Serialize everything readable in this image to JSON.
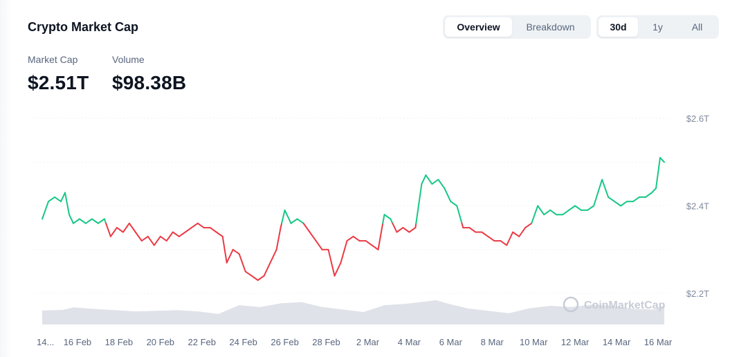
{
  "header": {
    "title": "Crypto Market Cap",
    "view_tabs": [
      {
        "label": "Overview",
        "active": true
      },
      {
        "label": "Breakdown",
        "active": false
      }
    ],
    "range_tabs": [
      {
        "label": "30d",
        "active": true
      },
      {
        "label": "1y",
        "active": false
      },
      {
        "label": "All",
        "active": false
      }
    ]
  },
  "stats": {
    "market_cap_label": "Market Cap",
    "market_cap_value": "$2.51T",
    "volume_label": "Volume",
    "volume_value": "$98.38B"
  },
  "watermark": "CoinMarketCap",
  "colors": {
    "up": "#16c784",
    "down": "#ea3943",
    "volume": "#dfe2e8",
    "grid": "#eff2f5"
  },
  "chart_data": {
    "type": "line",
    "title": "",
    "xlabel": "",
    "ylabel": "",
    "y_unit": "T",
    "ylim": [
      2.14,
      2.61
    ],
    "y_ticks": [
      {
        "value": 2.6,
        "label": "$2.6T"
      },
      {
        "value": 2.4,
        "label": "$2.4T"
      },
      {
        "value": 2.2,
        "label": "$2.2T"
      }
    ],
    "x_ticks": [
      {
        "x": 0.0,
        "label": "14..."
      },
      {
        "x": 1.7,
        "label": "16 Feb"
      },
      {
        "x": 3.7,
        "label": "18 Feb"
      },
      {
        "x": 5.7,
        "label": "20 Feb"
      },
      {
        "x": 7.7,
        "label": "22 Feb"
      },
      {
        "x": 9.7,
        "label": "24 Feb"
      },
      {
        "x": 11.7,
        "label": "26 Feb"
      },
      {
        "x": 13.7,
        "label": "28 Feb"
      },
      {
        "x": 15.7,
        "label": "2 Mar"
      },
      {
        "x": 17.7,
        "label": "4 Mar"
      },
      {
        "x": 19.7,
        "label": "6 Mar"
      },
      {
        "x": 21.7,
        "label": "8 Mar"
      },
      {
        "x": 23.7,
        "label": "10 Mar"
      },
      {
        "x": 25.7,
        "label": "12 Mar"
      },
      {
        "x": 27.7,
        "label": "14 Mar"
      },
      {
        "x": 29.7,
        "label": "16 Mar"
      }
    ],
    "reference_value": 2.36,
    "grid": true,
    "series": [
      {
        "kind": "market_cap",
        "points": [
          [
            0.0,
            2.37
          ],
          [
            0.3,
            2.41
          ],
          [
            0.6,
            2.42
          ],
          [
            0.9,
            2.41
          ],
          [
            1.1,
            2.43
          ],
          [
            1.3,
            2.38
          ],
          [
            1.5,
            2.36
          ],
          [
            1.8,
            2.37
          ],
          [
            2.1,
            2.36
          ],
          [
            2.4,
            2.37
          ],
          [
            2.7,
            2.36
          ],
          [
            3.0,
            2.37
          ],
          [
            3.3,
            2.33
          ],
          [
            3.6,
            2.35
          ],
          [
            3.9,
            2.34
          ],
          [
            4.2,
            2.36
          ],
          [
            4.5,
            2.34
          ],
          [
            4.8,
            2.32
          ],
          [
            5.1,
            2.33
          ],
          [
            5.4,
            2.31
          ],
          [
            5.7,
            2.33
          ],
          [
            6.0,
            2.32
          ],
          [
            6.3,
            2.34
          ],
          [
            6.6,
            2.33
          ],
          [
            6.9,
            2.34
          ],
          [
            7.2,
            2.35
          ],
          [
            7.5,
            2.36
          ],
          [
            7.8,
            2.35
          ],
          [
            8.1,
            2.35
          ],
          [
            8.4,
            2.34
          ],
          [
            8.7,
            2.33
          ],
          [
            8.9,
            2.27
          ],
          [
            9.2,
            2.3
          ],
          [
            9.5,
            2.29
          ],
          [
            9.8,
            2.25
          ],
          [
            10.1,
            2.24
          ],
          [
            10.4,
            2.23
          ],
          [
            10.7,
            2.24
          ],
          [
            11.0,
            2.27
          ],
          [
            11.3,
            2.3
          ],
          [
            11.5,
            2.35
          ],
          [
            11.7,
            2.39
          ],
          [
            12.0,
            2.36
          ],
          [
            12.3,
            2.37
          ],
          [
            12.6,
            2.36
          ],
          [
            12.9,
            2.34
          ],
          [
            13.2,
            2.32
          ],
          [
            13.5,
            2.3
          ],
          [
            13.8,
            2.3
          ],
          [
            14.1,
            2.24
          ],
          [
            14.4,
            2.27
          ],
          [
            14.7,
            2.32
          ],
          [
            15.0,
            2.33
          ],
          [
            15.3,
            2.32
          ],
          [
            15.6,
            2.32
          ],
          [
            15.9,
            2.31
          ],
          [
            16.2,
            2.3
          ],
          [
            16.5,
            2.38
          ],
          [
            16.8,
            2.37
          ],
          [
            17.1,
            2.34
          ],
          [
            17.4,
            2.35
          ],
          [
            17.7,
            2.34
          ],
          [
            18.0,
            2.35
          ],
          [
            18.3,
            2.45
          ],
          [
            18.5,
            2.47
          ],
          [
            18.8,
            2.45
          ],
          [
            19.1,
            2.46
          ],
          [
            19.4,
            2.44
          ],
          [
            19.7,
            2.41
          ],
          [
            20.0,
            2.4
          ],
          [
            20.3,
            2.35
          ],
          [
            20.6,
            2.35
          ],
          [
            20.9,
            2.34
          ],
          [
            21.2,
            2.34
          ],
          [
            21.5,
            2.33
          ],
          [
            21.8,
            2.32
          ],
          [
            22.1,
            2.32
          ],
          [
            22.4,
            2.31
          ],
          [
            22.7,
            2.34
          ],
          [
            23.0,
            2.33
          ],
          [
            23.3,
            2.35
          ],
          [
            23.6,
            2.36
          ],
          [
            23.9,
            2.4
          ],
          [
            24.2,
            2.38
          ],
          [
            24.5,
            2.39
          ],
          [
            24.8,
            2.38
          ],
          [
            25.1,
            2.38
          ],
          [
            25.4,
            2.39
          ],
          [
            25.7,
            2.4
          ],
          [
            26.0,
            2.39
          ],
          [
            26.3,
            2.39
          ],
          [
            26.6,
            2.4
          ],
          [
            27.0,
            2.46
          ],
          [
            27.3,
            2.42
          ],
          [
            27.6,
            2.41
          ],
          [
            27.9,
            2.4
          ],
          [
            28.2,
            2.41
          ],
          [
            28.5,
            2.41
          ],
          [
            28.8,
            2.42
          ],
          [
            29.1,
            2.42
          ],
          [
            29.4,
            2.43
          ],
          [
            29.6,
            2.44
          ],
          [
            29.8,
            2.51
          ],
          [
            30.0,
            2.5
          ]
        ]
      },
      {
        "kind": "volume",
        "unit": "relative",
        "points": [
          [
            0.0,
            0.45
          ],
          [
            1.0,
            0.47
          ],
          [
            1.5,
            0.55
          ],
          [
            2.5,
            0.5
          ],
          [
            3.5,
            0.46
          ],
          [
            4.5,
            0.42
          ],
          [
            5.5,
            0.44
          ],
          [
            6.5,
            0.46
          ],
          [
            7.5,
            0.42
          ],
          [
            8.5,
            0.34
          ],
          [
            9.5,
            0.62
          ],
          [
            10.5,
            0.56
          ],
          [
            11.5,
            0.68
          ],
          [
            12.5,
            0.72
          ],
          [
            13.5,
            0.56
          ],
          [
            14.5,
            0.48
          ],
          [
            15.5,
            0.4
          ],
          [
            16.5,
            0.62
          ],
          [
            17.5,
            0.66
          ],
          [
            18.5,
            0.74
          ],
          [
            19.0,
            0.78
          ],
          [
            19.5,
            0.68
          ],
          [
            20.5,
            0.52
          ],
          [
            21.5,
            0.44
          ],
          [
            22.5,
            0.36
          ],
          [
            23.5,
            0.52
          ],
          [
            24.5,
            0.6
          ],
          [
            25.5,
            0.56
          ],
          [
            26.5,
            0.64
          ],
          [
            27.5,
            0.6
          ],
          [
            28.5,
            0.5
          ],
          [
            29.5,
            0.48
          ],
          [
            30.0,
            0.62
          ]
        ]
      }
    ]
  }
}
